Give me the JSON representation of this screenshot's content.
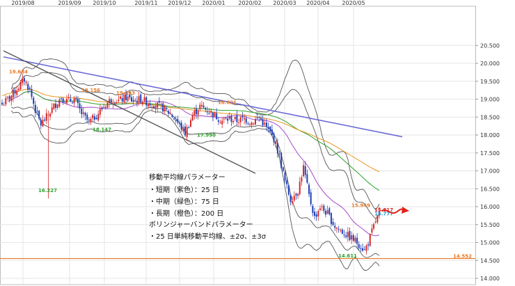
{
  "chart_data": {
    "type": "line",
    "title": "",
    "xlabel": "",
    "ylabel": "",
    "x_ticks": [
      "2019/08",
      "2019/09",
      "2019/10",
      "2019/11",
      "2019/12",
      "2020/01",
      "2020/02",
      "2020/03",
      "2020/04",
      "2020/05"
    ],
    "y_ticks": [
      "20.500",
      "20.000",
      "19.500",
      "19.000",
      "18.500",
      "18.000",
      "17.500",
      "17.000",
      "16.500",
      "16.000",
      "15.500",
      "15.000",
      "14.500",
      "14.000"
    ],
    "ylim": [
      14.0,
      20.6
    ],
    "grid": true,
    "annotations": [
      {
        "text": "19.684",
        "color": "#e87722"
      },
      {
        "text": "16.227",
        "color": "#2ca02c"
      },
      {
        "text": "19.156",
        "color": "#e87722"
      },
      {
        "text": "19.093",
        "color": "#e87722"
      },
      {
        "text": "18.147",
        "color": "#2ca02c"
      },
      {
        "text": "17.990",
        "color": "#2ca02c"
      },
      {
        "text": "18.821",
        "color": "#e87722"
      },
      {
        "text": "15.949",
        "color": "#e87722"
      },
      {
        "text": "15.817",
        "color": "#d62728"
      },
      {
        "text": "15.777",
        "color": "#1f9bd7"
      },
      {
        "text": "14.611",
        "color": "#2ca02c"
      },
      {
        "text": "14.552",
        "color": "#e87722"
      }
    ],
    "legend_lines": [
      "移動平均線パラメーター",
      "・短期（紫色）：25 日",
      "・中期（緑色）：75 日",
      "・長期（橙色）：200 日",
      "ボリンジャーバンドパラメーター",
      "・25 日単純移動平均線、±2σ、±3σ"
    ],
    "series": [
      {
        "type": "candlestick",
        "up_color": "#d62728",
        "down_color": "#1f3fb4"
      },
      {
        "type": "line",
        "color": "#a64ac9"
      },
      {
        "type": "line",
        "color": "#2ca02c"
      },
      {
        "type": "line",
        "color": "#e8961e"
      },
      {
        "type": "line",
        "color": "#555555"
      },
      {
        "type": "line",
        "color": "#555555"
      }
    ],
    "price_line": {
      "value": 14.552,
      "color": "#e87722"
    },
    "colors": {
      "trend_blue": "#6b6bd6",
      "trend_gray": "#555555",
      "arrow": "#e0241b"
    }
  }
}
